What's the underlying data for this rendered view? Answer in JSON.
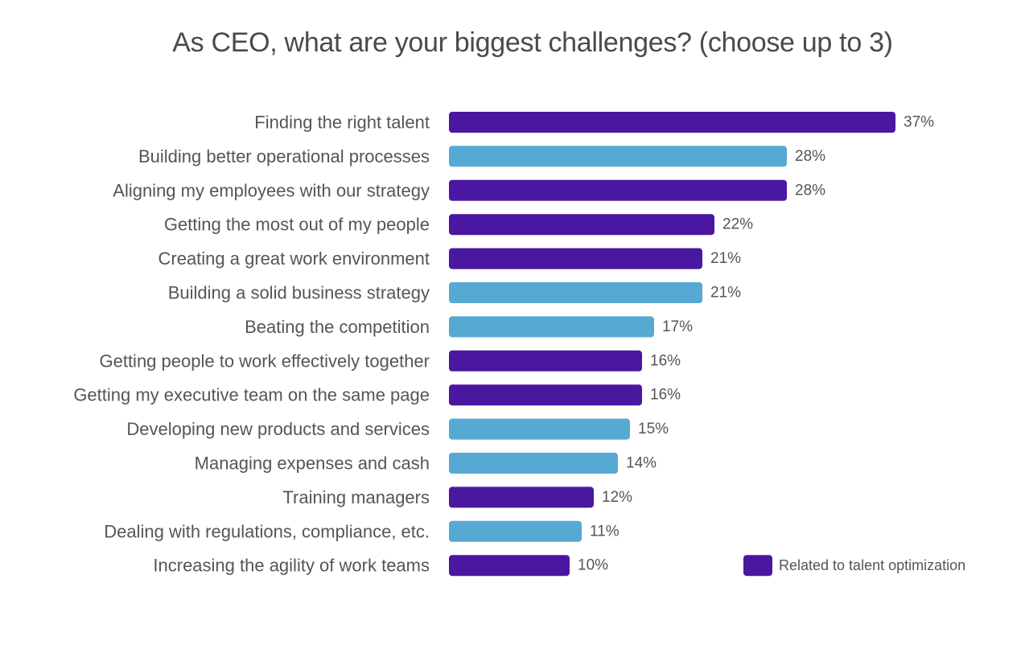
{
  "chart_data": {
    "type": "bar",
    "orientation": "horizontal",
    "title": "As CEO, what are your biggest challenges? (choose up to 3)",
    "categories": [
      "Finding the right talent",
      "Building better operational processes",
      "Aligning my employees with our strategy",
      "Getting the most out of my people",
      "Creating a great work environment",
      "Building a solid business strategy",
      "Beating the competition",
      "Getting people to work effectively together",
      "Getting my executive team on the same page",
      "Developing new products and services",
      "Managing expenses and cash",
      "Training managers",
      "Dealing with regulations, compliance, etc.",
      "Increasing the agility of work teams"
    ],
    "values": [
      37,
      28,
      28,
      22,
      21,
      21,
      17,
      16,
      16,
      15,
      14,
      12,
      11,
      10
    ],
    "value_labels": [
      "37%",
      "28%",
      "28%",
      "22%",
      "21%",
      "21%",
      "17%",
      "16%",
      "16%",
      "15%",
      "14%",
      "12%",
      "11%",
      "10%"
    ],
    "talent_related": [
      true,
      false,
      true,
      true,
      true,
      false,
      false,
      true,
      true,
      false,
      false,
      true,
      false,
      true
    ],
    "unit": "%",
    "colors": {
      "talent": "#4a17a0",
      "other": "#55a9d2"
    },
    "legend": {
      "label": "Related to talent optimization",
      "placement": "bottom-right"
    }
  }
}
